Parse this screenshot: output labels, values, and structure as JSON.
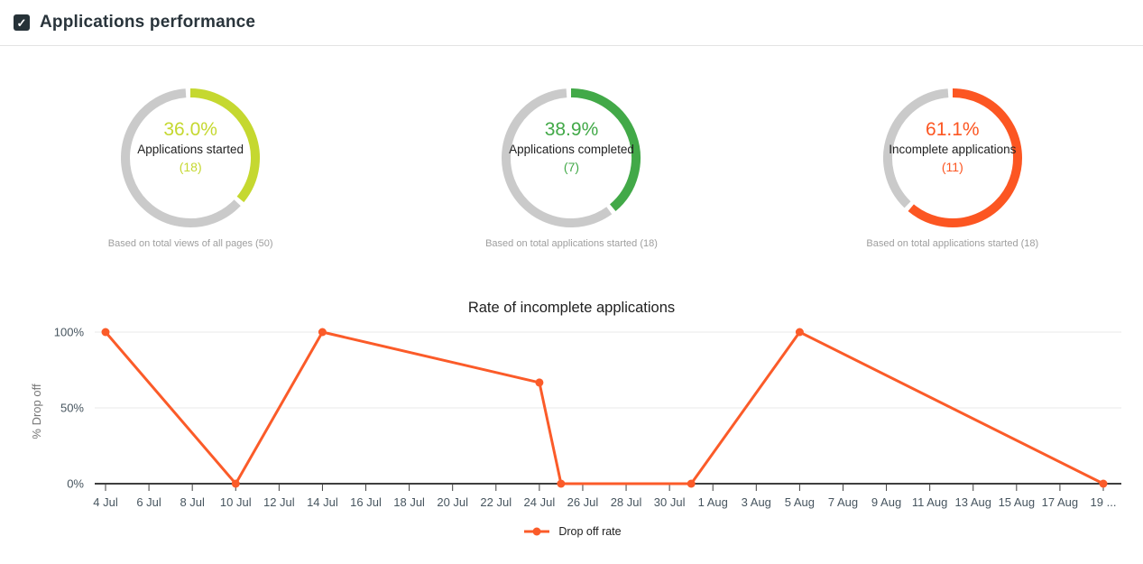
{
  "header": {
    "title": "Applications performance",
    "checkbox_checked": true,
    "checkmark": "✓"
  },
  "chart_data": [
    {
      "type": "pie",
      "variant": "donut-gauge",
      "title": "Applications started",
      "percent": 36.0,
      "percent_label": "36.0%",
      "count": 18,
      "count_label": "(18)",
      "total": 50,
      "caption": "Based on total views of all pages (50)",
      "color": "#c5d830",
      "track_color": "#cacaca"
    },
    {
      "type": "pie",
      "variant": "donut-gauge",
      "title": "Applications completed",
      "percent": 38.9,
      "percent_label": "38.9%",
      "count": 7,
      "count_label": "(7)",
      "total": 18,
      "caption": "Based on total applications started (18)",
      "color": "#42a948",
      "track_color": "#cacaca"
    },
    {
      "type": "pie",
      "variant": "donut-gauge",
      "title": "Incomplete applications",
      "percent": 61.1,
      "percent_label": "61.1%",
      "count": 11,
      "count_label": "(11)",
      "total": 18,
      "caption": "Based on total applications started (18)",
      "color": "#fc5622",
      "track_color": "#cacaca"
    },
    {
      "type": "line",
      "title": "Rate of incomplete applications",
      "xlabel": "",
      "ylabel": "% Drop off",
      "ylim": [
        0,
        100
      ],
      "grid": true,
      "legend_position": "bottom",
      "y_ticks": [
        {
          "value": 0,
          "label": "0%"
        },
        {
          "value": 50,
          "label": "50%"
        },
        {
          "value": 100,
          "label": "100%"
        }
      ],
      "x_ticks": [
        {
          "day": 0,
          "label": "4 Jul"
        },
        {
          "day": 2,
          "label": "6 Jul"
        },
        {
          "day": 4,
          "label": "8 Jul"
        },
        {
          "day": 6,
          "label": "10 Jul"
        },
        {
          "day": 8,
          "label": "12 Jul"
        },
        {
          "day": 10,
          "label": "14 Jul"
        },
        {
          "day": 12,
          "label": "16 Jul"
        },
        {
          "day": 14,
          "label": "18 Jul"
        },
        {
          "day": 16,
          "label": "20 Jul"
        },
        {
          "day": 18,
          "label": "22 Jul"
        },
        {
          "day": 20,
          "label": "24 Jul"
        },
        {
          "day": 22,
          "label": "26 Jul"
        },
        {
          "day": 24,
          "label": "28 Jul"
        },
        {
          "day": 26,
          "label": "30 Jul"
        },
        {
          "day": 28,
          "label": "1 Aug"
        },
        {
          "day": 30,
          "label": "3 Aug"
        },
        {
          "day": 32,
          "label": "5 Aug"
        },
        {
          "day": 34,
          "label": "7 Aug"
        },
        {
          "day": 36,
          "label": "9 Aug"
        },
        {
          "day": 38,
          "label": "11 Aug"
        },
        {
          "day": 40,
          "label": "13 Aug"
        },
        {
          "day": 42,
          "label": "15 Aug"
        },
        {
          "day": 44,
          "label": "17 Aug"
        },
        {
          "day": 46,
          "label": "19 ..."
        }
      ],
      "series": [
        {
          "name": "Drop off rate",
          "color": "#fb5b29",
          "points": [
            {
              "date": "4 Jul",
              "day": 0,
              "value": 100
            },
            {
              "date": "10 Jul",
              "day": 6,
              "value": 0
            },
            {
              "date": "14 Jul",
              "day": 10,
              "value": 100
            },
            {
              "date": "24 Jul",
              "day": 20,
              "value": 66.7
            },
            {
              "date": "25 Jul",
              "day": 21,
              "value": 0
            },
            {
              "date": "31 Jul",
              "day": 27,
              "value": 0
            },
            {
              "date": "5 Aug",
              "day": 32,
              "value": 100
            },
            {
              "date": "19 Aug",
              "day": 46,
              "value": 0
            }
          ]
        }
      ]
    }
  ]
}
